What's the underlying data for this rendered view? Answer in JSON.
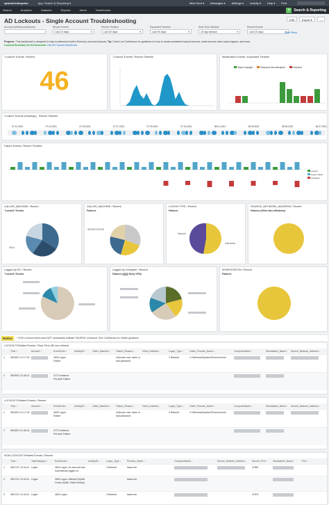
{
  "topbar": {
    "logo": "splunk>enterprise",
    "app_menu": "App: Search & Reporting ▾",
    "user": "Mike Kern ▾",
    "messages": "Messages ▾",
    "settings": "Settings ▾",
    "activity": "Activity ▾",
    "help": "Help ▾",
    "find": "Find"
  },
  "nav": {
    "items": [
      "Search",
      "Analytics",
      "Datasets",
      "Reports",
      "Alerts",
      "Dashboards"
    ],
    "app_title": "Search & Reporting"
  },
  "title": "AD Lockouts - Single Account Troubleshooting",
  "buttons": {
    "edit": "Edit",
    "export": "Export ▾",
    "more": "..."
  },
  "filters": [
    {
      "label": "Account (sAMAccountName)",
      "value": "",
      "dd": ""
    },
    {
      "label": "Recent Events",
      "value": "Last 15 days",
      "dd": "▾"
    },
    {
      "label": "Recent Timeline",
      "value": "Last 30 days",
      "dd": "▾"
    },
    {
      "label": "Expanded Timeline",
      "value": "Last 90 days",
      "dd": "▾"
    },
    {
      "label": "Real-Time Window",
      "value": "15 day window",
      "dd": "▾"
    },
    {
      "label": "Recent Events",
      "value": "Last 15 days",
      "dd": "▾"
    }
  ],
  "hide_filters": "Hide Filters",
  "desc": {
    "purpose_label": "Purpose:",
    "purpose": " This dashboard is designed to help troubleshoot Active Directory account lockouts. ",
    "tip_label": "Tip:",
    "tip": " Check out Confluence for guidance on how to locate persistent lockout sources, what sources when locks happen, and more.",
    "summary_label": "Lockout Summary for All Accounts:",
    "summary_link": "Use the Splunk Dashboard"
  },
  "panels": {
    "lockout_events": {
      "title": "\"Lockout\" Events / Recent",
      "value": "46"
    },
    "lockout_timeline": {
      "title": "\"Lockout\" Events / Recent Timeline"
    },
    "mod_events": {
      "title": "Modification Events / Expanded Timeline",
      "legend": [
        "Object changed",
        "Password was attempted",
        "Unlocked"
      ]
    },
    "heatmap": {
      "title": "\"Locked\" Events (Heatmap) - Recent Timeline",
      "dates": [
        "07-21-2021",
        "07-23-2021",
        "07-25-2021",
        "07-27-2021",
        "07-29-2021",
        "07-31-2021",
        "08-01-2021",
        "08-03-2021",
        "08-05-2021",
        "08-07-2021"
      ]
    },
    "failure": {
      "title": "Failure Events / Recent Timeline",
      "legend": [
        "Locked",
        "Logon Failed",
        "Unlocked"
      ]
    },
    "caller1": {
      "title": "CALLER_MACHINE / Recent",
      "sub": "\"Locked\" Events",
      "slice_label": "NULL"
    },
    "caller2": {
      "title": "CALLER_MACHINE / Recent",
      "sub": "Failures",
      "slice_label": "WORKSTATION"
    },
    "logon": {
      "title": "LOGON TYPE / Recent",
      "sub": "Failures",
      "l1": "Network",
      "l2": "Interactive"
    },
    "source": {
      "title": "SOURCE_NETWORK_ADDRESS / Recent",
      "sub": "Failures (Often Non-Windows)"
    },
    "dc": {
      "title": "Logged by DC / Recent",
      "sub": "\"Locked\" Events"
    },
    "computer": {
      "title": "Logged by Computer / Recent",
      "sub": "Failures (||||||) likely VPN)"
    },
    "workstation": {
      "title": "WORKSTATION / Recent",
      "sub": "Failures"
    }
  },
  "notice": {
    "label": "Notice",
    "text": "* 4740 Lockout event does NOT necessarily indicate SOURCE of lockout. See Confluence for further guidance."
  },
  "table1": {
    "title": "LOCKOUT-Related Events / Real-Time (30 sec refresh)",
    "headers": [
      "",
      "Time ↕",
      "Account ↕",
      "EventCode ↕",
      "ActivityID ↕",
      "Caller_Machine ↕",
      "Failure_Reason ↕",
      "Client_Address ↕",
      "Logon_Type ↕",
      "Caller_Process_Name ↕",
      "ComputerName ↕",
      "Workstation_Name ↕",
      "Source_Network_Address ↕"
    ],
    "rows": [
      [
        "1",
        "08/18/21 21:17:43",
        "",
        "4625 Logon Failure",
        "",
        "",
        "Unknown user name or bad password.",
        "",
        "3 Network",
        "C:\\Windows\\System32\\svchost.exe",
        "",
        "",
        ""
      ],
      [
        "2",
        "08/18/21 21:46:13",
        "",
        "4771 Kerberos Pre-auth Failure",
        "",
        "",
        "",
        "",
        "",
        "",
        "",
        "",
        ""
      ]
    ]
  },
  "table2": {
    "title": "LOCKOUT-Related Events / Recent",
    "headers": [
      "",
      "Time ↕",
      "Account ↕",
      "EventCode ↕",
      "ActivityID ↕",
      "Caller_Machine ↕",
      "Failure_Reason ↕",
      "Client_Address ↕",
      "Logon_Type ↕",
      "Caller_Process_Name ↕",
      "ComputerName ↕",
      "Workstation_Name ↕",
      "Source_Network_Address ↕"
    ],
    "rows": [
      [
        "1",
        "08/18/21 21:17:43",
        "",
        "4625 Logon Failure",
        "",
        "",
        "Unknown user name or bad password.",
        "",
        "3 Network",
        "C:\\Windows\\System32\\svchost.exe",
        "",
        "",
        ""
      ],
      [
        "2",
        "08/18/21 21:46:13",
        "",
        "4771 Kerberos Pre-auth Failure",
        "",
        "",
        "",
        "",
        "",
        "",
        "",
        "",
        ""
      ]
    ]
  },
  "table3": {
    "title": "NON-LOCKOUT-Related Events / Recent",
    "headers": [
      "",
      "Time ↕",
      "TaskCategory ↕",
      "EventCode ↕",
      "ActivityID ↕",
      "Logon_Type ↕",
      "Process_Name ↕",
      "ComputerName ↕",
      "Source_Network_Address ↕",
      "Source_Port ↕",
      "Workstation_Name ↕",
      "Port ↕"
    ],
    "rows": [
      [
        "1",
        "08/17/21 13:44:11",
        "Logon",
        "4624 Logon: An account was successfully logged on.",
        "",
        "3 Network",
        "lsass.exe",
        "",
        "",
        "47862",
        "",
        ""
      ],
      [
        "2",
        "08/17/21 13:44:11",
        "Logon",
        "4634 Logon: Attempt Explicit Crede (SAML Token Renew)",
        "",
        "",
        "lsass.exe",
        "",
        "",
        "",
        "",
        ""
      ],
      [
        "3",
        "08/17/21 13:44:11",
        "Logon",
        "4624 Logon",
        "",
        "3 Network",
        "lsass.exe",
        "",
        "",
        "47874",
        "",
        ""
      ]
    ]
  }
}
